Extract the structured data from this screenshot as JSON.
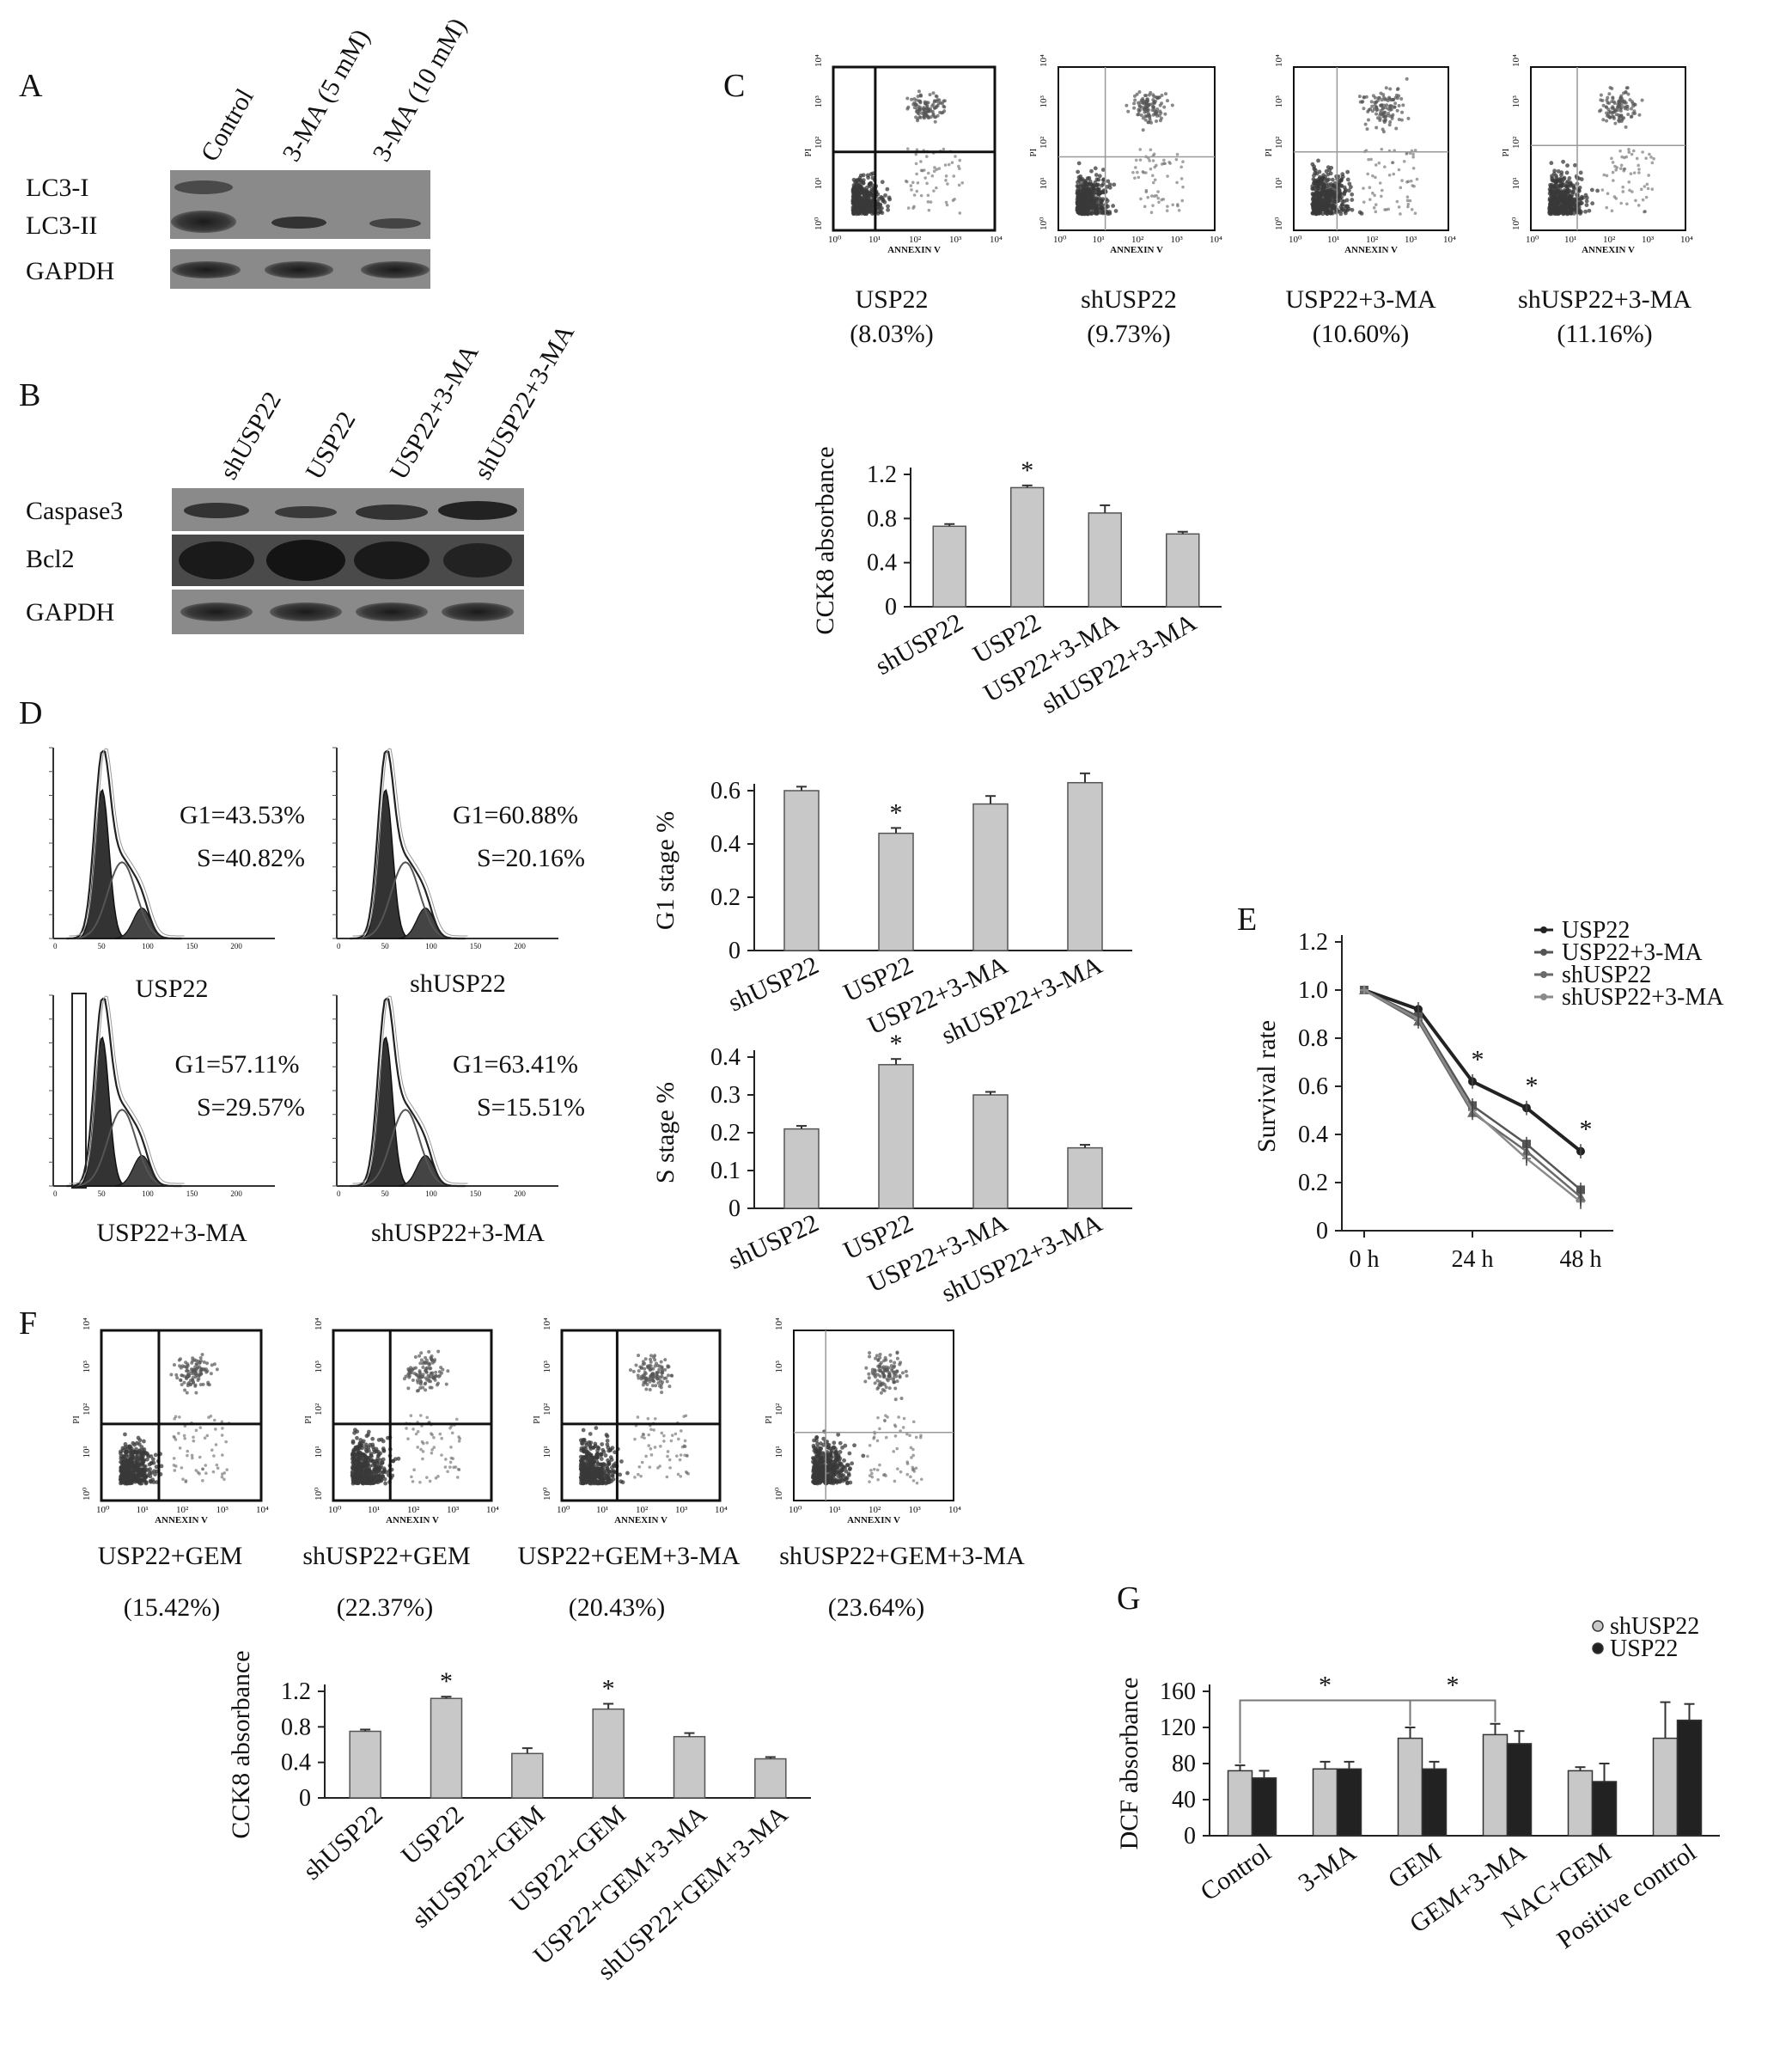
{
  "panel_letters": [
    "A",
    "B",
    "C",
    "D",
    "E",
    "F",
    "G"
  ],
  "panelA": {
    "lanes": [
      "Control",
      "3-MA (5 mM)",
      "3-MA (10 mM)"
    ],
    "rows": [
      "LC3-I",
      "LC3-II",
      "GAPDH"
    ]
  },
  "panelB": {
    "lanes": [
      "shUSP22",
      "USP22",
      "USP22+3-MA",
      "shUSP22+3-MA"
    ],
    "rows": [
      "Caspase3",
      "Bcl2",
      "GAPDH"
    ]
  },
  "flow_axis": {
    "x": "ANNEXIN V",
    "y": "PI"
  },
  "panelC": {
    "flow": [
      {
        "label": "USP22",
        "value": "(8.03%)"
      },
      {
        "label": "shUSP22",
        "value": "(9.73%)"
      },
      {
        "label": "USP22+3-MA",
        "value": "(10.60%)"
      },
      {
        "label": "shUSP22+3-MA",
        "value": "(11.16%)"
      }
    ]
  },
  "panelD": {
    "hist": [
      {
        "label": "USP22",
        "g1": "G1=43.53%",
        "s": "S=40.82%"
      },
      {
        "label": "shUSP22",
        "g1": "G1=60.88%",
        "s": "S=20.16%"
      },
      {
        "label": "USP22+3-MA",
        "g1": "G1=57.11%",
        "s": "S=29.57%"
      },
      {
        "label": "shUSP22+3-MA",
        "g1": "G1=63.41%",
        "s": "S=15.51%"
      }
    ]
  },
  "panelF": {
    "flow": [
      {
        "label": "USP22+GEM",
        "value": "(15.42%)"
      },
      {
        "label": "shUSP22+GEM",
        "value": "(22.37%)"
      },
      {
        "label": "USP22+GEM+3-MA",
        "value": "(20.43%)"
      },
      {
        "label": "shUSP22+GEM+3-MA",
        "value": "(23.64%)"
      }
    ]
  },
  "chart_data": [
    {
      "id": "cckC",
      "type": "bar",
      "ylabel": "CCK8 absorbance",
      "categories": [
        "shUSP22",
        "USP22",
        "USP22+3-MA",
        "shUSP22+3-MA"
      ],
      "values": [
        0.73,
        1.08,
        0.85,
        0.66
      ],
      "errors": [
        0.02,
        0.02,
        0.07,
        0.02
      ],
      "significant": [
        false,
        true,
        false,
        false
      ],
      "ylim": [
        0,
        1.2
      ],
      "yticks": [
        "0",
        "0.4",
        "0.8",
        "1.2"
      ]
    },
    {
      "id": "g1D",
      "type": "bar",
      "ylabel": "G1 stage %",
      "categories": [
        "shUSP22",
        "USP22",
        "USP22+3-MA",
        "shUSP22+3-MA"
      ],
      "values": [
        0.6,
        0.44,
        0.55,
        0.63
      ],
      "errors": [
        0.015,
        0.02,
        0.03,
        0.035
      ],
      "significant": [
        false,
        true,
        false,
        false
      ],
      "ylim": [
        0,
        0.6
      ],
      "yticks": [
        "0",
        "0.2",
        "0.4",
        "0.6"
      ]
    },
    {
      "id": "sD",
      "type": "bar",
      "ylabel": "S stage %",
      "categories": [
        "shUSP22",
        "USP22",
        "USP22+3-MA",
        "shUSP22+3-MA"
      ],
      "values": [
        0.21,
        0.38,
        0.3,
        0.16
      ],
      "errors": [
        0.008,
        0.015,
        0.008,
        0.008
      ],
      "significant": [
        false,
        true,
        false,
        false
      ],
      "ylim": [
        0,
        0.4
      ],
      "yticks": [
        "0",
        "0.1",
        "0.2",
        "0.3",
        "0.4"
      ]
    },
    {
      "id": "survE",
      "type": "line",
      "ylabel": "Survival rate",
      "x": [
        0,
        12,
        24,
        36,
        48
      ],
      "xticks": [
        "0 h",
        "24 h",
        "48 h"
      ],
      "xtick_values": [
        0,
        24,
        48
      ],
      "ylim": [
        0,
        1.2
      ],
      "yticks": [
        "0",
        "0.2",
        "0.4",
        "0.6",
        "0.8",
        "1.0",
        "1.2"
      ],
      "series": [
        {
          "name": "USP22",
          "values": [
            1.0,
            0.92,
            0.62,
            0.51,
            0.33
          ],
          "color": "#222222",
          "marker": "circle"
        },
        {
          "name": "USP22+3-MA",
          "values": [
            1.0,
            0.89,
            0.52,
            0.36,
            0.17
          ],
          "color": "#555555",
          "marker": "square"
        },
        {
          "name": "shUSP22",
          "values": [
            1.0,
            0.87,
            0.49,
            0.33,
            0.14
          ],
          "color": "#6a6a6a",
          "marker": "triangle"
        },
        {
          "name": "shUSP22+3-MA",
          "values": [
            1.0,
            0.88,
            0.5,
            0.3,
            0.12
          ],
          "color": "#8a8a8a",
          "marker": "cross"
        }
      ],
      "stars": [
        24,
        36,
        48
      ],
      "legend": "top-right"
    },
    {
      "id": "cckF",
      "type": "bar",
      "ylabel": "CCK8 absorbance",
      "categories": [
        "shUSP22",
        "USP22",
        "shUSP22+GEM",
        "USP22+GEM",
        "USP22+GEM+3-MA",
        "shUSP22+GEM+3-MA"
      ],
      "values": [
        0.75,
        1.12,
        0.5,
        1.0,
        0.69,
        0.44
      ],
      "errors": [
        0.02,
        0.02,
        0.06,
        0.06,
        0.04,
        0.02
      ],
      "significant": [
        false,
        true,
        false,
        true,
        false,
        false
      ],
      "ylim": [
        0,
        1.2
      ],
      "yticks": [
        "0",
        "0.4",
        "0.8",
        "1.2"
      ]
    },
    {
      "id": "dcfG",
      "type": "bar",
      "ylabel": "DCF absorbance",
      "categories": [
        "Control",
        "3-MA",
        "GEM",
        "GEM+3-MA",
        "NAC+GEM",
        "Positive control"
      ],
      "series": [
        {
          "name": "shUSP22",
          "values": [
            72,
            74,
            108,
            112,
            72,
            108
          ],
          "errors": [
            6,
            8,
            12,
            12,
            4,
            40
          ],
          "color": "#c8c8c8"
        },
        {
          "name": "USP22",
          "values": [
            64,
            74,
            74,
            102,
            60,
            128
          ],
          "errors": [
            8,
            8,
            8,
            14,
            20,
            18
          ],
          "color": "#222222"
        }
      ],
      "ylim": [
        0,
        160
      ],
      "yticks": [
        "0",
        "40",
        "80",
        "120",
        "160"
      ],
      "brackets": [
        "Control–GEM *",
        "GEM–GEM+3-MA *"
      ],
      "star": "*",
      "legend": "top-right"
    }
  ]
}
